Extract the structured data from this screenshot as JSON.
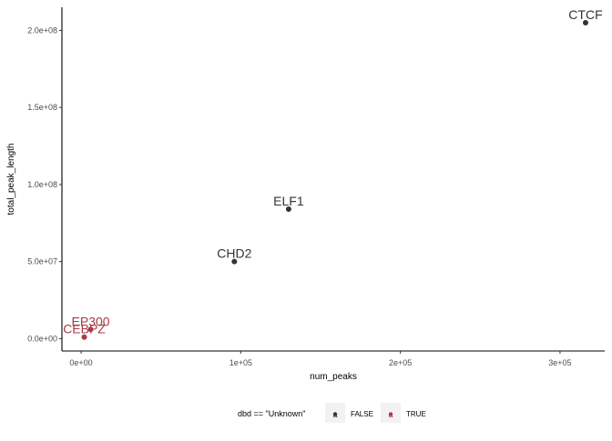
{
  "chart_data": {
    "type": "scatter",
    "title": "",
    "xlabel": "num_peaks",
    "ylabel": "total_peak_length",
    "xlim": [
      -12000,
      328000
    ],
    "ylim": [
      -8000000,
      215000000
    ],
    "x_ticks": [
      {
        "value": 0,
        "label": "0e+00"
      },
      {
        "value": 100000,
        "label": "1e+05"
      },
      {
        "value": 200000,
        "label": "2e+05"
      },
      {
        "value": 300000,
        "label": "3e+05"
      }
    ],
    "y_ticks": [
      {
        "value": 0,
        "label": "0.0e+00"
      },
      {
        "value": 50000000,
        "label": "5.0e+07"
      },
      {
        "value": 100000000,
        "label": "1.0e+08"
      },
      {
        "value": 150000000,
        "label": "1.5e+08"
      },
      {
        "value": 200000000,
        "label": "2.0e+08"
      }
    ],
    "points": [
      {
        "label": "CTCF",
        "x": 316000,
        "y": 205000000,
        "group": "FALSE"
      },
      {
        "label": "ELF1",
        "x": 130000,
        "y": 84000000,
        "group": "FALSE"
      },
      {
        "label": "CHD2",
        "x": 96000,
        "y": 50000000,
        "group": "FALSE"
      },
      {
        "label": "EP300",
        "x": 6000,
        "y": 6000000,
        "group": "TRUE"
      },
      {
        "label": "CEBPZ",
        "x": 2000,
        "y": 1000000,
        "group": "TRUE"
      }
    ],
    "colors": {
      "FALSE": "#333333",
      "TRUE": "#a93a46"
    },
    "legend": {
      "title": "dbd == \"Unknown\"",
      "position": "bottom",
      "key_glyph": "a",
      "entries": [
        {
          "label": "FALSE",
          "group": "FALSE"
        },
        {
          "label": "TRUE",
          "group": "TRUE"
        }
      ]
    }
  }
}
